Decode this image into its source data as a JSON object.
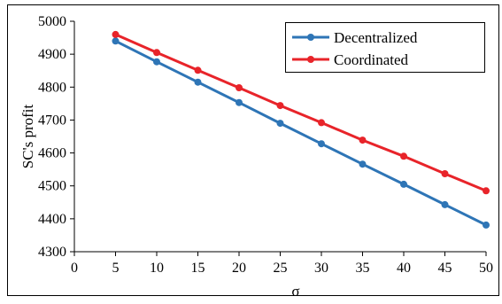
{
  "chart_data": {
    "type": "line",
    "title": "",
    "xlabel": "σ",
    "ylabel": "SC's profit",
    "xlim": [
      0,
      50
    ],
    "ylim": [
      4300,
      5000
    ],
    "x_ticks": [
      0,
      5,
      10,
      15,
      20,
      25,
      30,
      35,
      40,
      45,
      50
    ],
    "y_ticks": [
      4300,
      4400,
      4500,
      4600,
      4700,
      4800,
      4900,
      5000
    ],
    "grid": false,
    "legend_position": "top-right",
    "x": [
      5,
      10,
      15,
      20,
      25,
      30,
      35,
      40,
      45,
      50
    ],
    "series": [
      {
        "name": "Decentralized",
        "color": "#2e75b6",
        "values": [
          4940,
          4877,
          4815,
          4753,
          4690,
          4628,
          4566,
          4505,
          4443,
          4381
        ]
      },
      {
        "name": "Coordinated",
        "color": "#e8242a",
        "values": [
          4960,
          4905,
          4851,
          4798,
          4744,
          4692,
          4639,
          4590,
          4537,
          4485
        ]
      }
    ]
  }
}
